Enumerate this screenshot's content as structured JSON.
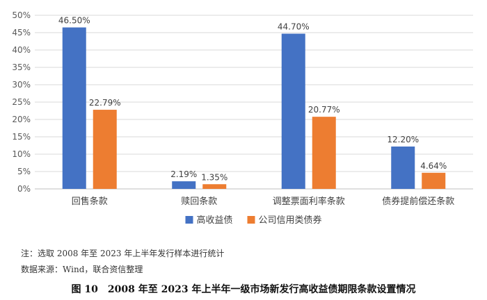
{
  "chart_data": {
    "type": "bar",
    "categories": [
      "回售条款",
      "赎回条款",
      "调整票面利率条款",
      "债券提前偿还条款"
    ],
    "series": [
      {
        "name": "高收益债",
        "values": [
          46.5,
          2.19,
          44.7,
          12.2
        ],
        "labels": [
          "46.50%",
          "2.19%",
          "44.70%",
          "12.20%"
        ],
        "color": "#4472C4"
      },
      {
        "name": "公司信用类债券",
        "values": [
          22.79,
          1.35,
          20.77,
          4.64
        ],
        "labels": [
          "22.79%",
          "1.35%",
          "20.77%",
          "4.64%"
        ],
        "color": "#ED7D31"
      }
    ],
    "ylim": [
      0,
      50
    ],
    "yticks": [
      "0%",
      "5%",
      "10%",
      "15%",
      "20%",
      "25%",
      "30%",
      "35%",
      "40%",
      "45%",
      "50%"
    ],
    "grid": true,
    "legend": "bottom"
  },
  "notes": {
    "note": "注：选取 2008 年至 2023 年上半年发行样本进行统计",
    "source": "数据来源：Wind，联合资信整理"
  },
  "caption": "图 10　2008 年至 2023 年上半年一级市场新发行高收益债期限条款设置情况"
}
